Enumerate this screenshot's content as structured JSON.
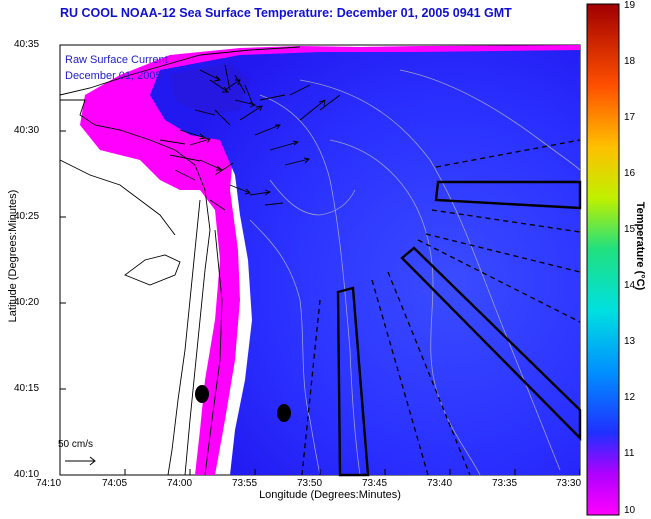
{
  "header": {
    "title": "RU COOL   NOAA-12  Sea Surface Temperature:  December 01, 2005 0941 GMT"
  },
  "axes": {
    "xlabel": "Longitude (Degrees:Minutes)",
    "ylabel": "Latitude (Degrees:Minutes)",
    "xticks": [
      "74:10",
      "74:05",
      "74:00",
      "73:55",
      "73:50",
      "73:45",
      "73:40",
      "73:35",
      "73:30"
    ],
    "yticks": [
      "40:35",
      "40:30",
      "40:25",
      "40:20",
      "40:15",
      "40:10"
    ]
  },
  "colorbar": {
    "label": "Temperature (°C)",
    "ticks": [
      "19",
      "18",
      "17",
      "16",
      "15",
      "14",
      "13",
      "12",
      "11",
      "10"
    ],
    "min": 10,
    "max": 19
  },
  "legend": {
    "line1": "Raw Surface Current",
    "line2": "December 01, 2005",
    "scale_label": "50 cm/s"
  },
  "colors": {
    "title": "#1010d0",
    "land": "#ffffff",
    "cold": "#ff00ff",
    "water": "#3020ff"
  }
}
